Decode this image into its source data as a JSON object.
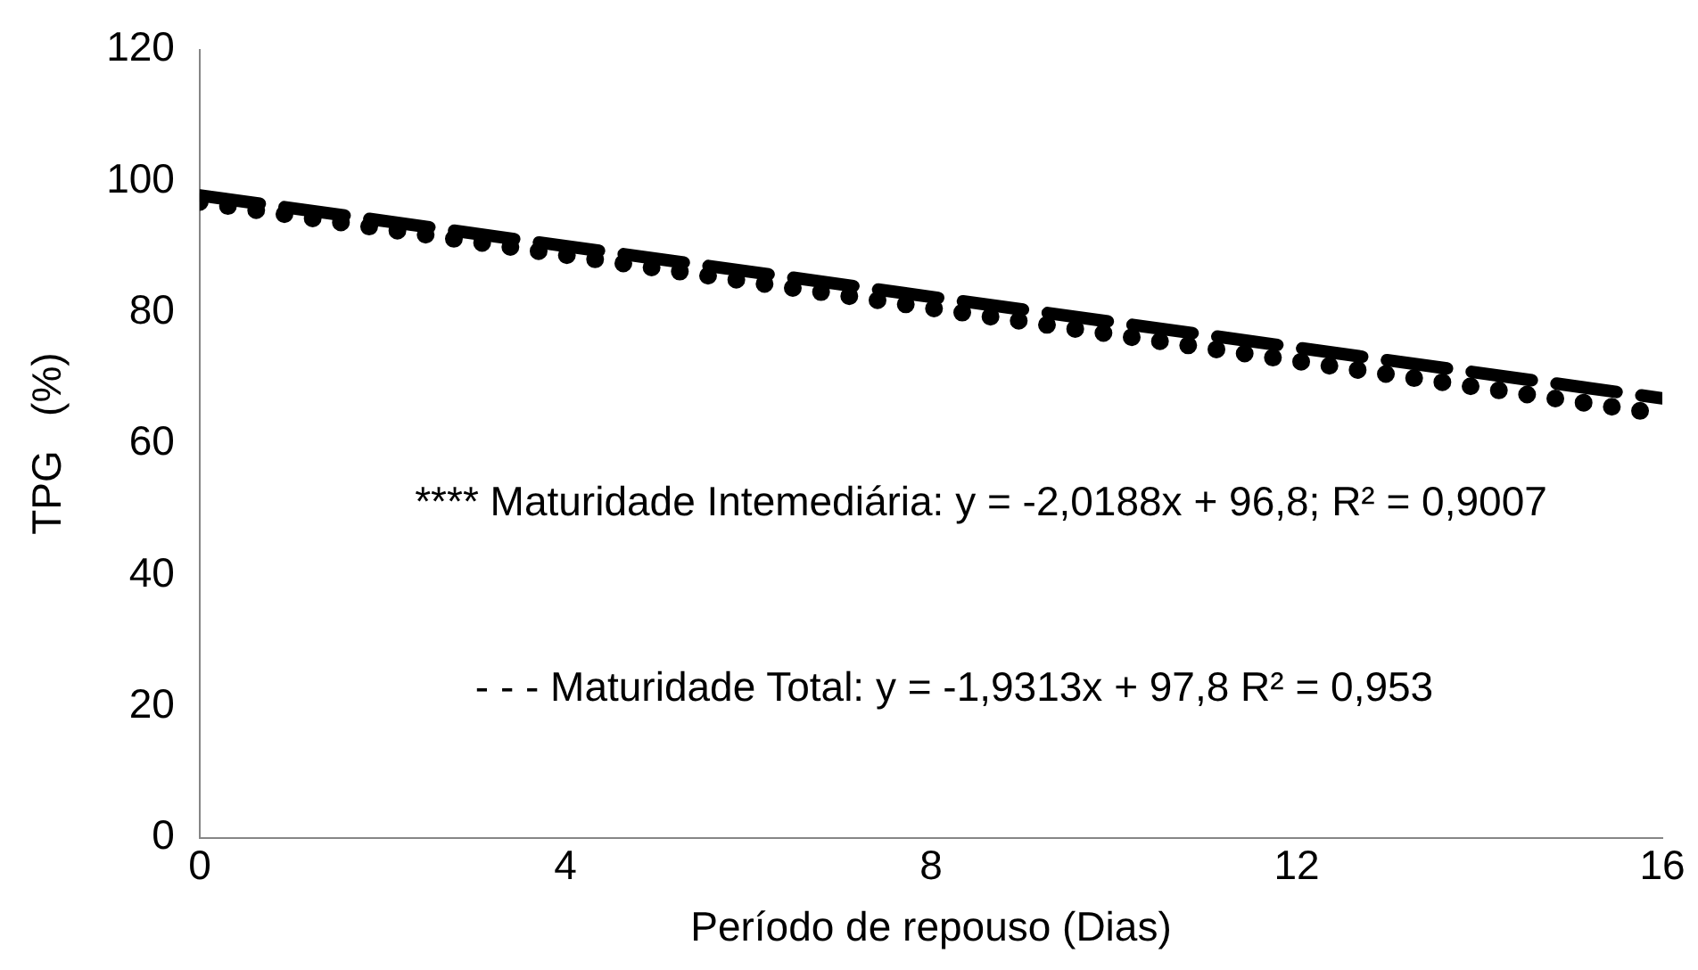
{
  "chart_data": {
    "type": "line",
    "xlabel": "Período de repouso (Dias)",
    "ylabel": "TPG   (%)",
    "x": [
      0,
      16
    ],
    "series": [
      {
        "color": "#000000",
        "values": [
          96.8,
          64.5
        ],
        "line_style": "dotted"
      },
      {
        "color": "#000000",
        "values": [
          97.8,
          66.9
        ],
        "line_style": "dashed"
      }
    ],
    "xlim": [
      0,
      16
    ],
    "xticks": [
      0,
      4,
      8,
      12,
      16
    ],
    "ylim": [
      0,
      120
    ],
    "yticks": [
      0,
      20,
      40,
      60,
      80,
      100,
      120
    ],
    "grid": false,
    "legend": false,
    "marker": "none",
    "annotations": [
      "**** Maturidade Intemediária: y = -2,0188x + 96,8; R² = 0,9007",
      "- - - Maturidade Total: y = -1,9313x + 97,8 R² = 0,953"
    ]
  }
}
